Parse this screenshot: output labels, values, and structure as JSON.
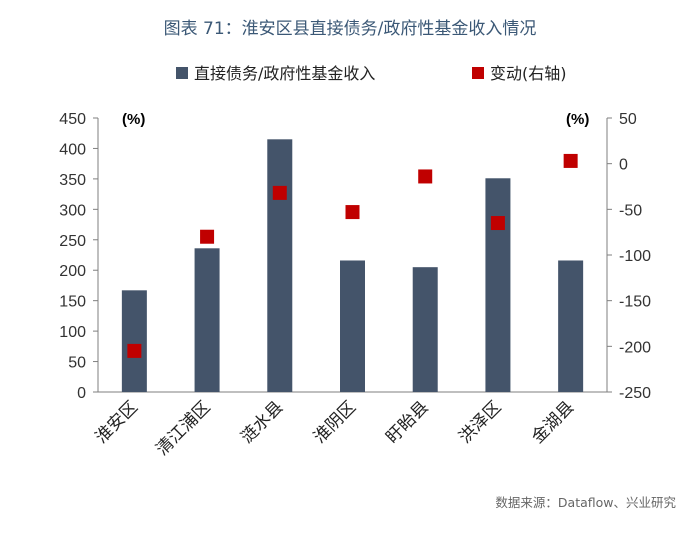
{
  "chart_data": {
    "type": "bar",
    "title": "图表 71：淮安区县直接债务/政府性基金收入情况",
    "categories": [
      "淮安区",
      "清江浦区",
      "涟水县",
      "淮阴区",
      "盱眙县",
      "洪泽区",
      "金湖县"
    ],
    "series": [
      {
        "name": "直接债务/政府性基金收入",
        "type": "bar",
        "axis": "left",
        "color": "#44546a",
        "values": [
          167,
          236,
          415,
          216,
          205,
          351,
          216
        ]
      },
      {
        "name": "变动(右轴)",
        "type": "scatter",
        "axis": "right",
        "color": "#c00000",
        "values": [
          -205,
          -80,
          -32,
          -53,
          -14,
          -65,
          3
        ]
      }
    ],
    "left_axis": {
      "unit_label": "(%)",
      "ylim": [
        0,
        450
      ],
      "ticks": [
        0,
        50,
        100,
        150,
        200,
        250,
        300,
        350,
        400,
        450
      ]
    },
    "right_axis": {
      "unit_label": "(%)",
      "ylim": [
        -250,
        50
      ],
      "ticks": [
        -250,
        -200,
        -150,
        -100,
        -50,
        0,
        50
      ]
    },
    "legend_position": "top",
    "grid": false,
    "source": "数据来源：Dataflow、兴业研究"
  }
}
